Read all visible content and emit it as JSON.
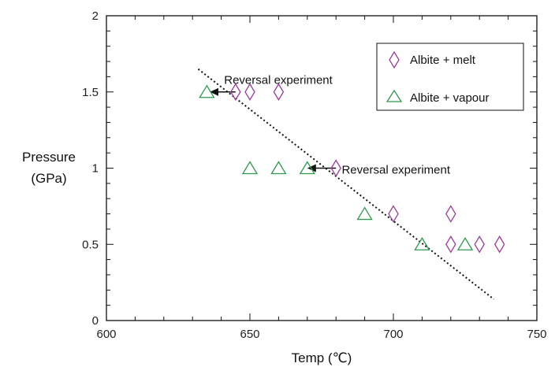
{
  "chart_data": {
    "type": "scatter",
    "xlabel": "Temp (℃)",
    "ylabel": [
      "Pressure",
      "(GPa)"
    ],
    "xlim": [
      600,
      750
    ],
    "ylim": [
      0,
      2
    ],
    "x_ticks": [
      600,
      650,
      700,
      750
    ],
    "y_ticks": [
      0,
      0.5,
      1,
      1.5,
      2
    ],
    "x_tick_labels": [
      "600",
      "650",
      "700",
      "750"
    ],
    "y_tick_labels": [
      "0",
      "0.5",
      "1",
      "1.5",
      "2"
    ],
    "x_minor_step": 10,
    "y_minor_step": 0.1,
    "grid": false,
    "legend_position": "top-right",
    "series": [
      {
        "name": "Albite + melt",
        "marker": "diamond",
        "color": "#9b3d9b",
        "points": [
          [
            645,
            1.5
          ],
          [
            650,
            1.5
          ],
          [
            660,
            1.5
          ],
          [
            680,
            1.0
          ],
          [
            700,
            0.7
          ],
          [
            720,
            0.7
          ],
          [
            720,
            0.5
          ],
          [
            730,
            0.5
          ],
          [
            737,
            0.5
          ]
        ]
      },
      {
        "name": "Albite + vapour",
        "marker": "triangle",
        "color": "#2e9a4e",
        "points": [
          [
            635,
            1.5
          ],
          [
            650,
            1.0
          ],
          [
            660,
            1.0
          ],
          [
            670,
            1.0
          ],
          [
            690,
            0.7
          ],
          [
            710,
            0.5
          ],
          [
            725,
            0.5
          ]
        ]
      }
    ],
    "boundary_line": {
      "style": "dotted",
      "color": "#111111",
      "points": [
        [
          632,
          1.65
        ],
        [
          735,
          0.14
        ]
      ]
    },
    "annotations": [
      {
        "text": "Reversal experiment",
        "at": [
          641,
          1.58
        ],
        "arrow_from": [
          645,
          1.5
        ],
        "arrow_to": [
          636,
          1.5
        ]
      },
      {
        "text": "Reversal experiment",
        "at": [
          682,
          0.99
        ],
        "arrow_from": [
          680,
          1.0
        ],
        "arrow_to": [
          670,
          1.0
        ]
      }
    ]
  }
}
